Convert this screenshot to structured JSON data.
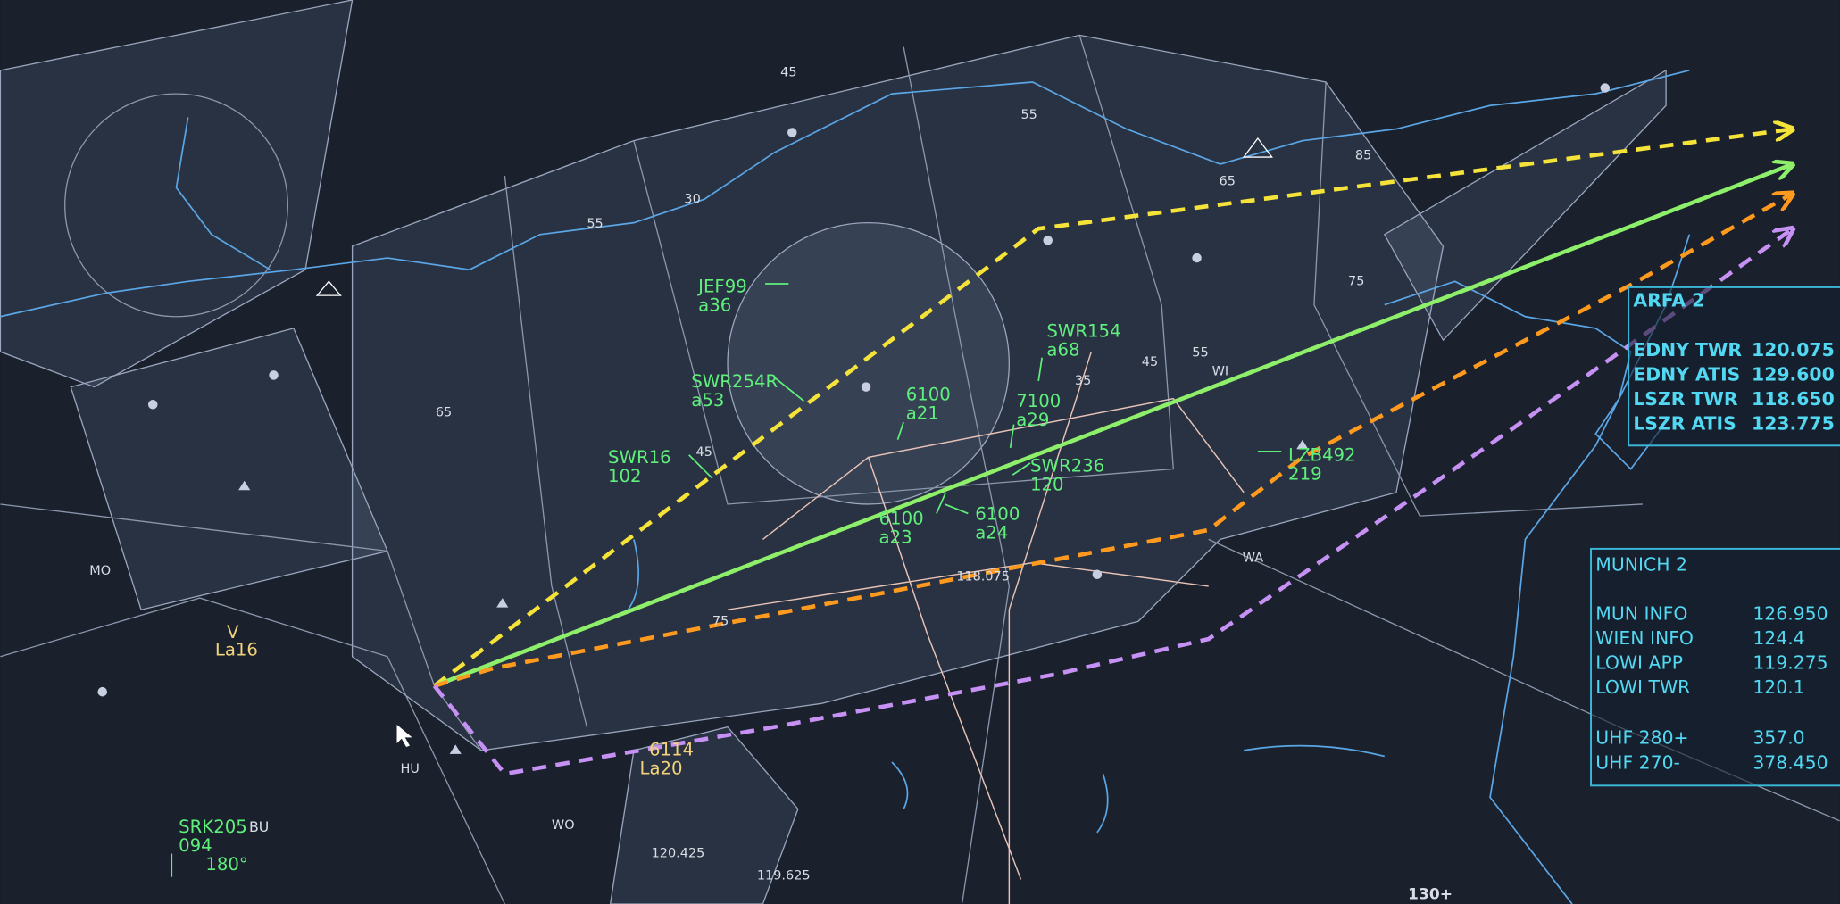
{
  "aircraft_labels": [
    {
      "lines": [
        "JEF99",
        "a36"
      ]
    },
    {
      "lines": [
        "SWR254R",
        "a53"
      ]
    },
    {
      "lines": [
        "SWR16",
        "102"
      ]
    },
    {
      "lines": [
        "6100",
        "a21"
      ]
    },
    {
      "lines": [
        "SWR154",
        "a68"
      ]
    },
    {
      "lines": [
        "7100",
        "a29"
      ]
    },
    {
      "lines": [
        "SWR236",
        "120"
      ]
    },
    {
      "lines": [
        "6100",
        "a23"
      ]
    },
    {
      "lines": [
        "6100",
        "a24"
      ]
    },
    {
      "lines": [
        "LZB492",
        "219"
      ]
    },
    {
      "lines": [
        "SRK205",
        "094",
        "180°"
      ],
      "suffix": "BU"
    },
    {
      "lines": [
        "V",
        "La16"
      ]
    },
    {
      "lines": [
        "6114",
        "La20"
      ]
    }
  ],
  "map_labels": [
    "45",
    "55",
    "30",
    "55",
    "65",
    "85",
    "75",
    "65",
    "45",
    "45",
    "55",
    "35",
    "75",
    "118.075",
    "120.425",
    "119.625",
    "130+",
    "MO",
    "HU",
    "WO",
    "WA",
    "WI"
  ],
  "panels": [
    {
      "title": "ARFA 2",
      "rows": [
        [
          "EDNY TWR",
          "120.075"
        ],
        [
          "EDNY ATIS",
          "129.600"
        ],
        [
          "LSZR TWR",
          "118.650"
        ],
        [
          "LSZR ATIS",
          "123.775"
        ]
      ]
    },
    {
      "title": "MUNICH 2",
      "rows": [
        [
          "MUN INFO",
          "126.950"
        ],
        [
          "WIEN INFO",
          "124.4"
        ],
        [
          "LOWI APP",
          "119.275"
        ],
        [
          "LOWI TWR",
          "120.1"
        ],
        [
          "UHF 280+",
          "357.0"
        ],
        [
          "UHF 270-",
          "378.450"
        ]
      ]
    }
  ]
}
